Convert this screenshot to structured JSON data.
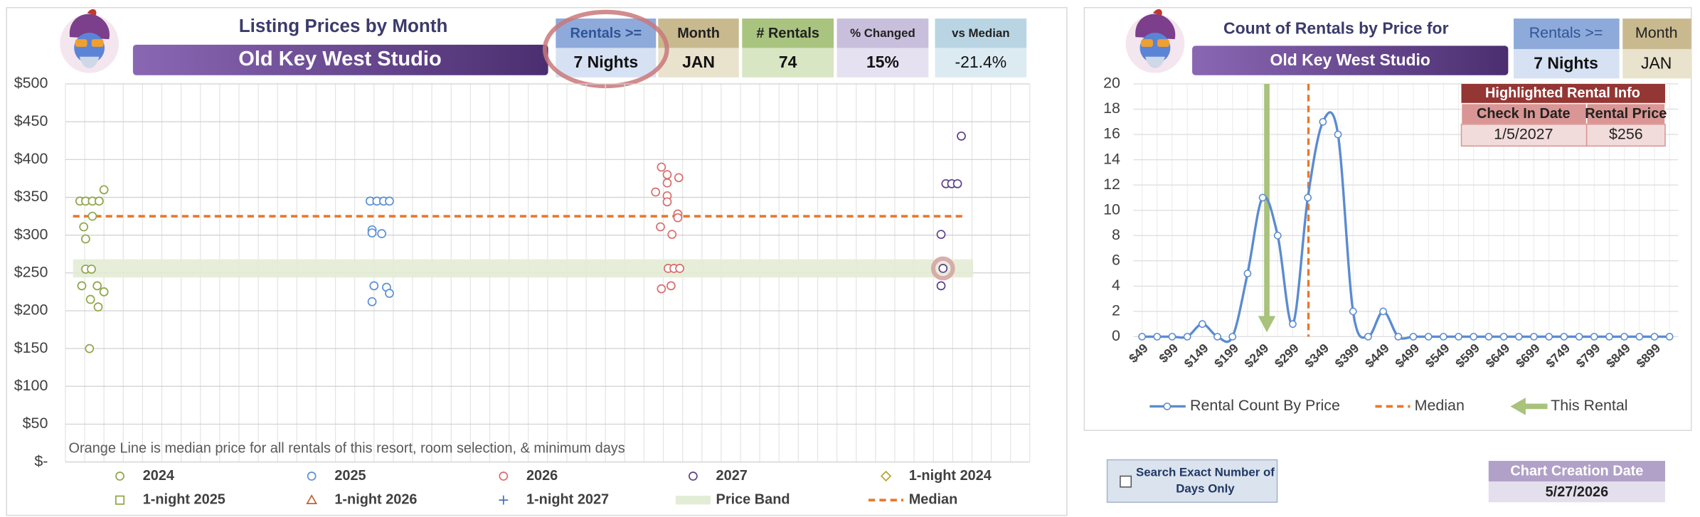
{
  "chart_data": [
    {
      "type": "scatter",
      "title": "Listing Prices by Month",
      "subtitle": "Old Key West Studio",
      "annotation": "Orange Line is median price for all rentals of this resort, room selection, & minimum days",
      "xlim": [
        0,
        100
      ],
      "xticks": [
        0,
        2,
        4,
        6,
        8,
        10,
        12,
        14,
        16,
        18,
        20,
        22,
        24,
        26,
        28,
        30,
        32,
        34,
        36,
        38,
        40,
        42,
        44,
        46,
        48,
        50,
        52,
        54,
        56,
        58,
        60,
        62,
        64,
        66,
        68,
        70,
        72,
        74,
        76,
        78,
        80,
        82,
        84,
        86,
        88,
        90,
        92,
        94,
        96,
        98,
        100
      ],
      "ylim": [
        0,
        500
      ],
      "yticks": [
        {
          "value": 0,
          "label": "$-"
        },
        {
          "value": 50,
          "label": "$50"
        },
        {
          "value": 100,
          "label": "$100"
        },
        {
          "value": 150,
          "label": "$150"
        },
        {
          "value": 200,
          "label": "$200"
        },
        {
          "value": 250,
          "label": "$250"
        },
        {
          "value": 300,
          "label": "$300"
        },
        {
          "value": 350,
          "label": "$350"
        },
        {
          "value": 400,
          "label": "$400"
        },
        {
          "value": 450,
          "label": "$450"
        },
        {
          "value": 500,
          "label": "$500"
        }
      ],
      "grid": true,
      "series": [
        {
          "name": "2024",
          "color": "#8fa447",
          "marker": "circle",
          "x": [
            1.5,
            2.1,
            2.8,
            3.5,
            4.0,
            2.8,
            1.9,
            2.1,
            2.1,
            2.7,
            1.7,
            3.3,
            2.6,
            4.0,
            3.4,
            2.5
          ],
          "values": [
            345,
            345,
            345,
            345,
            360,
            325,
            311,
            295,
            255,
            255,
            233,
            233,
            215,
            225,
            205,
            150
          ]
        },
        {
          "name": "2025",
          "color": "#5b8fd6",
          "marker": "circle",
          "x": [
            31.6,
            32.3,
            33.0,
            33.6,
            31.8,
            31.8,
            32.8,
            32.0,
            33.3,
            33.6,
            31.8
          ],
          "values": [
            345,
            345,
            345,
            345,
            307,
            303,
            302,
            233,
            231,
            223,
            212
          ]
        },
        {
          "name": "2026",
          "color": "#d96c6c",
          "marker": "circle",
          "x": [
            61.8,
            62.4,
            63.6,
            62.4,
            61.2,
            62.4,
            62.4,
            63.5,
            63.5,
            61.7,
            62.9,
            62.5,
            63.1,
            63.7,
            62.8,
            61.8
          ],
          "values": [
            390,
            380,
            376,
            369,
            357,
            352,
            344,
            328,
            323,
            311,
            301,
            256,
            256,
            256,
            233,
            229
          ]
        },
        {
          "name": "2027",
          "color": "#5e3f8a",
          "marker": "circle",
          "x": [
            92.9,
            91.3,
            91.9,
            92.5,
            90.8,
            91.0,
            90.8
          ],
          "values": [
            431,
            368,
            368,
            368,
            301,
            256,
            233
          ]
        },
        {
          "name": "1-night 2024",
          "color": "#b5a22a",
          "marker": "diamond",
          "x": [],
          "values": []
        },
        {
          "name": "1-night 2025",
          "color": "#8fa447",
          "marker": "square",
          "x": [],
          "values": []
        },
        {
          "name": "1-night 2026",
          "color": "#c0622e",
          "marker": "triangle",
          "x": [],
          "values": []
        },
        {
          "name": "1-night 2027",
          "color": "#4a6fb0",
          "marker": "plus",
          "x": [],
          "values": []
        }
      ],
      "highlight": {
        "series": 3,
        "index": 5
      },
      "price_band": {
        "name": "Price Band",
        "range": [
          244,
          268
        ],
        "color": "#e3ecd5"
      },
      "median": {
        "name": "Median",
        "value": 325,
        "color": "#e8782c"
      }
    },
    {
      "type": "line",
      "title": "Count of Rentals by Price for",
      "subtitle": "Old Key West Studio",
      "categories": [
        "$49",
        null,
        "$99",
        null,
        "$149",
        null,
        "$199",
        null,
        "$249",
        null,
        "$299",
        null,
        "$349",
        null,
        "$399",
        null,
        "$449",
        null,
        "$499",
        null,
        "$549",
        null,
        "$599",
        null,
        "$649",
        null,
        "$699",
        null,
        "$749",
        null,
        "$799",
        null,
        "$849",
        null,
        "$899",
        null
      ],
      "series": [
        {
          "name": "Rental Count By Price",
          "color": "#5b8bd0",
          "values": [
            0,
            0,
            0,
            0,
            1,
            0,
            0,
            5,
            11,
            8,
            1,
            11,
            17,
            16,
            2,
            0,
            2,
            0,
            0,
            0,
            0,
            0,
            0,
            0,
            0,
            0,
            0,
            0,
            0,
            0,
            0,
            0,
            0,
            0,
            0,
            0
          ]
        }
      ],
      "ylim": [
        0,
        20
      ],
      "yticks": [
        0,
        2,
        4,
        6,
        8,
        10,
        12,
        14,
        16,
        18,
        20
      ],
      "grid": true,
      "median": {
        "name": "Median",
        "value": 325,
        "color": "#e8782c"
      },
      "this_rental": {
        "name": "This Rental",
        "value": 256,
        "color": "#a9c27c"
      }
    }
  ],
  "filters": {
    "rentals_min": {
      "label": "Rentals >=",
      "value": "7 Nights"
    },
    "month": {
      "label": "Month",
      "value": "JAN"
    }
  },
  "stats": [
    {
      "label": "# Rentals",
      "value": 74
    },
    {
      "label": "% Changed",
      "value": "15%"
    },
    {
      "label": "vs Median",
      "value": "-21.4%"
    }
  ],
  "highlighted_rental": {
    "title": "Highlighted Rental Info",
    "headers": [
      "Check In Date",
      "Rental Price"
    ],
    "row": [
      "1/5/2027",
      "$256"
    ]
  },
  "search_option": {
    "label": "Search Exact Number of Days Only",
    "checked": false
  },
  "creation_date": {
    "label": "Chart Creation Date",
    "value": "5/27/2026"
  }
}
